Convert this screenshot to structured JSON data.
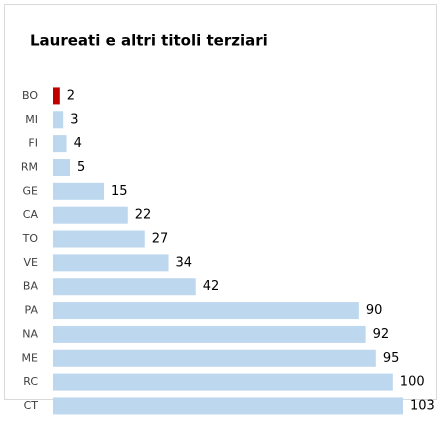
{
  "chart_data": {
    "type": "bar",
    "orientation": "horizontal",
    "title": "Laureati e altri titoli terziari",
    "categories": [
      "BO",
      "MI",
      "FI",
      "RM",
      "GE",
      "CA",
      "TO",
      "VE",
      "BA",
      "PA",
      "NA",
      "ME",
      "RC",
      "CT"
    ],
    "values": [
      2,
      3,
      4,
      5,
      15,
      22,
      27,
      34,
      42,
      90,
      92,
      95,
      100,
      103
    ],
    "colors": [
      "#c00000",
      "#bdd7ee",
      "#bdd7ee",
      "#bdd7ee",
      "#bdd7ee",
      "#bdd7ee",
      "#bdd7ee",
      "#bdd7ee",
      "#bdd7ee",
      "#bdd7ee",
      "#bdd7ee",
      "#bdd7ee",
      "#bdd7ee",
      "#bdd7ee"
    ]
  }
}
